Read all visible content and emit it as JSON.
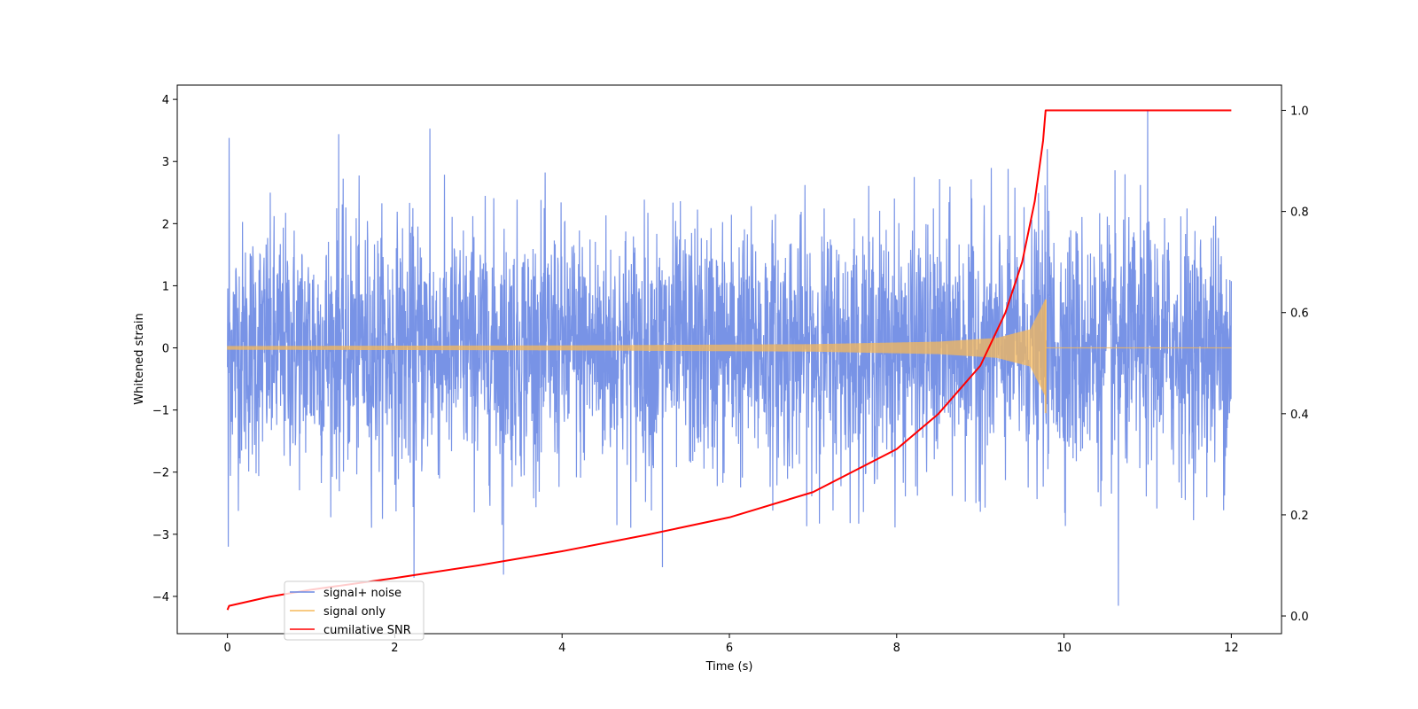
{
  "chart_data": {
    "type": "line",
    "xlabel": "Time (s)",
    "ylabel": "Whitened strain",
    "xlim": [
      -0.6,
      12.6
    ],
    "ylim": [
      -4.6,
      4.23
    ],
    "y2lim": [
      -0.035,
      1.05
    ],
    "x_ticks": [
      0,
      2,
      4,
      6,
      8,
      10,
      12
    ],
    "y_ticks": [
      -4,
      -3,
      -2,
      -1,
      0,
      1,
      2,
      3,
      4
    ],
    "y2_ticks": [
      0.0,
      0.2,
      0.4,
      0.6,
      0.8,
      1.0
    ],
    "x_tick_labels": [
      "0",
      "2",
      "4",
      "6",
      "8",
      "10",
      "12"
    ],
    "y_tick_labels": [
      "−4",
      "−3",
      "−2",
      "−1",
      "0",
      "1",
      "2",
      "3",
      "4"
    ],
    "y2_tick_labels": [
      "0.0",
      "0.2",
      "0.4",
      "0.6",
      "0.8",
      "1.0"
    ],
    "legend_position": "lower-left",
    "series": [
      {
        "name": "signal+ noise",
        "axis": "left",
        "color": "#6c8ae4",
        "description": "whitened noise plus signal, sampled from t=0 to t=12",
        "typical_amplitude": [
          -2.3,
          2.3
        ],
        "extreme_points": [
          {
            "x": 0.02,
            "y": 3.38
          },
          {
            "x": 0.01,
            "y": -3.2
          },
          {
            "x": 1.33,
            "y": 3.44
          },
          {
            "x": 2.42,
            "y": 3.53
          },
          {
            "x": 2.23,
            "y": -3.7
          },
          {
            "x": 3.3,
            "y": -3.65
          },
          {
            "x": 5.2,
            "y": -3.53
          },
          {
            "x": 10.65,
            "y": -4.15
          },
          {
            "x": 11.0,
            "y": 3.83
          },
          {
            "x": 9.8,
            "y": 3.2
          }
        ]
      },
      {
        "name": "signal only",
        "axis": "left",
        "color": "#f5b85a",
        "description": "chirp signal with amplitude rising until merger at t=9.78",
        "envelope": [
          {
            "x": 0.0,
            "a": 0.03
          },
          {
            "x": 4.0,
            "a": 0.04
          },
          {
            "x": 7.0,
            "a": 0.06
          },
          {
            "x": 8.5,
            "a": 0.1
          },
          {
            "x": 9.2,
            "a": 0.16
          },
          {
            "x": 9.6,
            "a": 0.3
          },
          {
            "x": 9.78,
            "a": 0.78
          }
        ],
        "merger_time": 9.78
      },
      {
        "name": "cumilative SNR",
        "axis": "right",
        "color": "#ff0000",
        "x": [
          0.0,
          0.02,
          0.5,
          1.0,
          2.0,
          3.0,
          4.0,
          5.0,
          6.0,
          7.0,
          8.0,
          8.5,
          9.0,
          9.3,
          9.5,
          9.65,
          9.75,
          9.78,
          10.0,
          12.0
        ],
        "values": [
          0.012,
          0.02,
          0.038,
          0.052,
          0.075,
          0.1,
          0.128,
          0.16,
          0.195,
          0.245,
          0.33,
          0.4,
          0.495,
          0.6,
          0.7,
          0.82,
          0.94,
          1.0,
          1.0,
          1.0
        ]
      }
    ]
  }
}
